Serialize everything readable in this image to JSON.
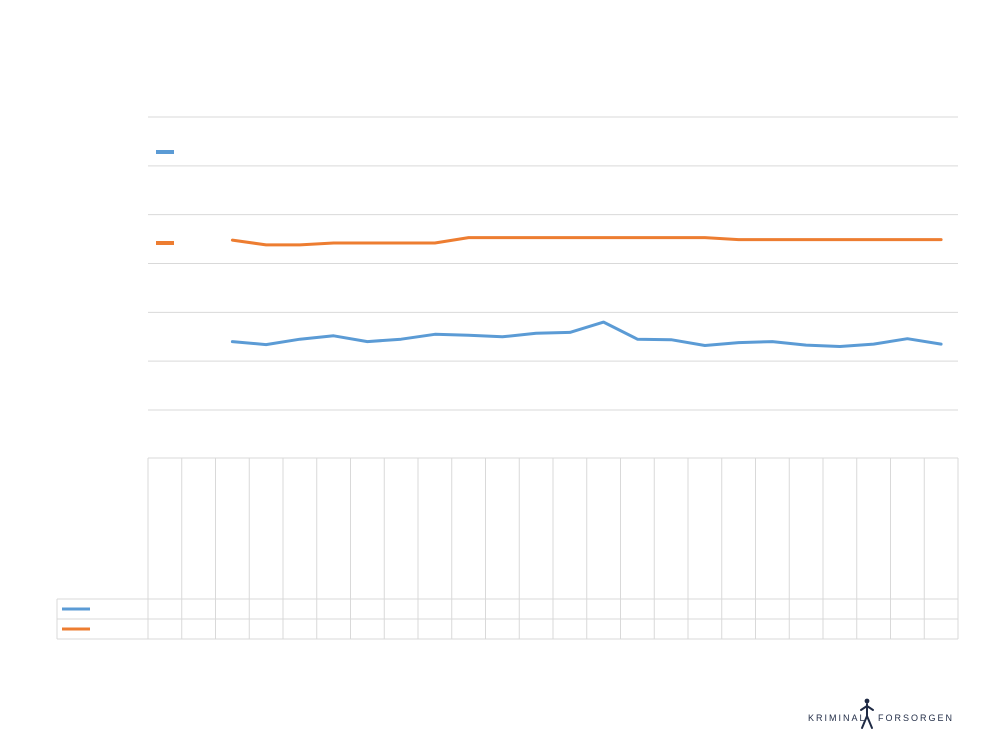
{
  "chart_data": {
    "type": "line",
    "title": "",
    "xlabel": "",
    "ylabel": "",
    "categories": [
      "",
      "",
      "",
      "",
      "",
      "",
      "",
      "",
      "",
      "",
      "",
      "",
      "",
      "",
      "",
      "",
      "",
      "",
      "",
      "",
      "",
      "",
      "",
      ""
    ],
    "ylim": [
      0,
      6
    ],
    "grid": true,
    "legend": "left",
    "series": [
      {
        "name": "",
        "color": "#5b9bd5",
        "values": [
          null,
          null,
          1.4,
          1.34,
          1.45,
          1.52,
          1.4,
          1.45,
          1.55,
          1.53,
          1.5,
          1.57,
          1.59,
          1.8,
          1.45,
          1.44,
          1.32,
          1.38,
          1.4,
          1.33,
          1.3,
          1.35,
          1.46,
          1.35
        ]
      },
      {
        "name": "",
        "color": "#ed7d31",
        "values": [
          null,
          null,
          3.48,
          3.38,
          3.38,
          3.42,
          3.42,
          3.42,
          3.42,
          3.53,
          3.53,
          3.53,
          3.53,
          3.53,
          3.53,
          3.53,
          3.53,
          3.49,
          3.49,
          3.49,
          3.49,
          3.49,
          3.49,
          3.49
        ]
      }
    ],
    "table": {
      "rows": [
        {
          "series_index": 0,
          "cells": [
            "",
            "",
            "",
            "",
            "",
            "",
            "",
            "",
            "",
            "",
            "",
            "",
            "",
            "",
            "",
            "",
            "",
            "",
            "",
            "",
            "",
            "",
            "",
            ""
          ]
        },
        {
          "series_index": 1,
          "cells": [
            "",
            "",
            "",
            "",
            "",
            "",
            "",
            "",
            "",
            "",
            "",
            "",
            "",
            "",
            "",
            "",
            "",
            "",
            "",
            "",
            "",
            "",
            "",
            ""
          ]
        }
      ]
    }
  },
  "logo": {
    "left_text": "KRIMINAL",
    "right_text": "FORSORGEN",
    "icon": "person-figure-icon",
    "color": "#1f2a44"
  }
}
